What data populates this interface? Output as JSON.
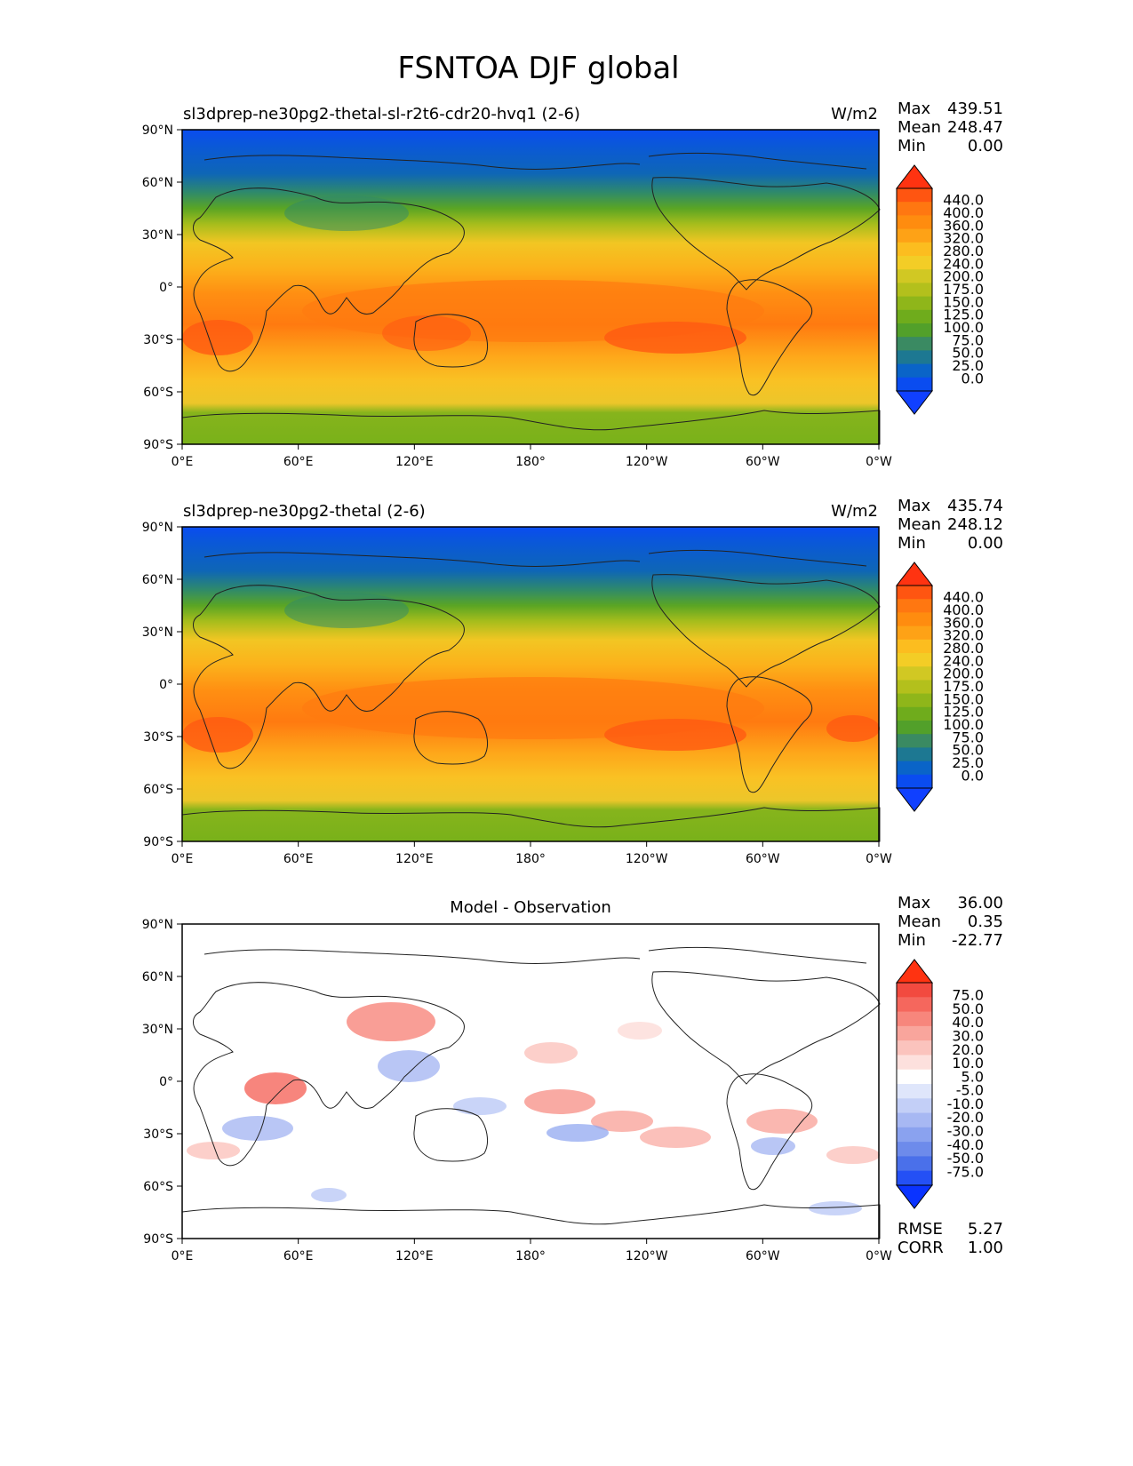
{
  "title": "FSNTOA DJF global",
  "lat_ticks": [
    "90°N",
    "60°N",
    "30°N",
    "0°",
    "30°S",
    "60°S",
    "90°S"
  ],
  "lon_ticks": [
    "0°E",
    "60°E",
    "120°E",
    "180°",
    "120°W",
    "60°W",
    "0°W"
  ],
  "stat_labels": {
    "max": "Max",
    "mean": "Mean",
    "min": "Min",
    "rmse": "RMSE",
    "corr": "CORR"
  },
  "panels": [
    {
      "title": "sl3dprep-ne30pg2-thetal-sl-r2t6-cdr20-hvq1 (2-6)",
      "units": "W/m2",
      "max": "439.51",
      "mean": "248.47",
      "min": "0.00"
    },
    {
      "title": "sl3dprep-ne30pg2-thetal (2-6)",
      "units": "W/m2",
      "max": "435.74",
      "mean": "248.12",
      "min": "0.00"
    },
    {
      "title": "Model - Observation",
      "units": "",
      "max": "36.00",
      "mean": "0.35",
      "min": "-22.77",
      "rmse": "5.27",
      "corr": "1.00"
    }
  ],
  "colorbars": {
    "field": {
      "labels": [
        "440.0",
        "400.0",
        "360.0",
        "320.0",
        "280.0",
        "240.0",
        "200.0",
        "175.0",
        "150.0",
        "125.0",
        "100.0",
        "75.0",
        "50.0",
        "25.0",
        "0.0"
      ],
      "colors": [
        "#ff3311",
        "#ff5511",
        "#ff7711",
        "#ff8c0f",
        "#fea216",
        "#fcbd1f",
        "#f3cd26",
        "#d1c823",
        "#b3c01c",
        "#8fb61a",
        "#6fac1c",
        "#52a02a",
        "#3a8a62",
        "#1d7892",
        "#0a64c8",
        "#0a4cf0",
        "#1040ff"
      ]
    },
    "diff": {
      "labels": [
        "75.0",
        "50.0",
        "40.0",
        "30.0",
        "20.0",
        "10.0",
        "5.0",
        "-5.0",
        "-10.0",
        "-20.0",
        "-30.0",
        "-40.0",
        "-50.0",
        "-75.0"
      ],
      "colors": [
        "#ff3311",
        "#f24a3f",
        "#f5675d",
        "#f7867c",
        "#f9a59c",
        "#fbc3bd",
        "#fde0dd",
        "#ffffff",
        "#dfe6fb",
        "#c3cff7",
        "#a7b8f3",
        "#8aa2ef",
        "#6d8beb",
        "#4a70ea",
        "#2450f5",
        "#0a33ff"
      ]
    }
  }
}
